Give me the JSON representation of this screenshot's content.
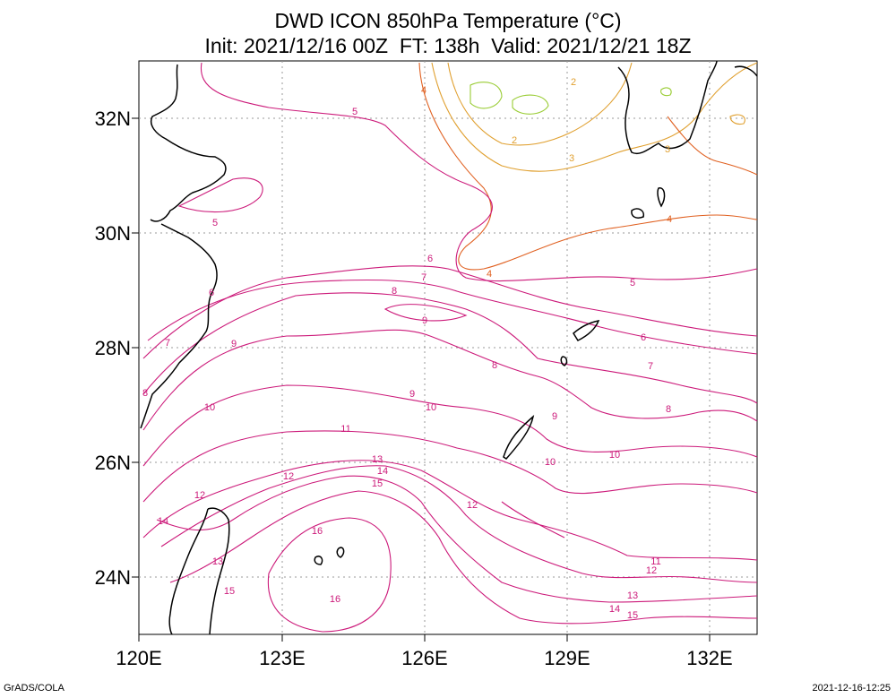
{
  "title": {
    "line1": "DWD ICON 850hPa Temperature (°C)",
    "line2": "Init: 2021/12/16 00Z  FT: 138h  Valid: 2021/12/21 18Z"
  },
  "axes": {
    "lat_labels": [
      "32N",
      "30N",
      "28N",
      "26N",
      "24N"
    ],
    "lon_labels": [
      "120E",
      "123E",
      "126E",
      "129E",
      "132E"
    ],
    "lat_range": [
      23,
      33
    ],
    "lon_range": [
      120,
      133
    ]
  },
  "contour_labels": [
    "2",
    "3",
    "4",
    "5",
    "6",
    "7",
    "8",
    "9",
    "10",
    "11",
    "12",
    "13",
    "14",
    "15",
    "16"
  ],
  "colors": {
    "cold_2": "#99cc33",
    "cool_3": "#e0a030",
    "mid_4": "#e06020",
    "warm": "#cc1a7a",
    "coast": "#000000",
    "grid": "#888888"
  },
  "footer": {
    "left": "GrADS/COLA",
    "right": "2021-12-16-12:25"
  }
}
